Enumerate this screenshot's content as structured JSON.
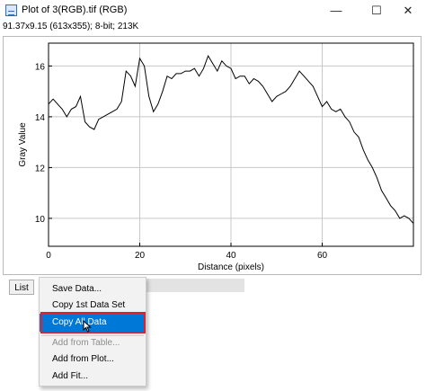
{
  "window": {
    "title": "Plot of 3(RGB).tif (RGB)",
    "info": "91.37x9.15  (613x355); 8-bit; 213K",
    "controls": {
      "minimize": "—",
      "maximize": "☐",
      "close": "✕"
    }
  },
  "chart_data": {
    "type": "line",
    "xlabel": "Distance (pixels)",
    "ylabel": "Gray Value",
    "xlim": [
      0,
      80
    ],
    "ylim": [
      8.9,
      16.9
    ],
    "xticks": [
      0,
      20,
      40,
      60
    ],
    "yticks": [
      10,
      12,
      14,
      16
    ],
    "x_tick_labels": [
      "0",
      "20",
      "40",
      "60"
    ],
    "y_tick_labels": [
      "10",
      "12",
      "14",
      "16"
    ],
    "grid": true,
    "series": [
      {
        "x": [
          0,
          1,
          2,
          3,
          4,
          5,
          6,
          7,
          8,
          9,
          10,
          11,
          12,
          13,
          14,
          15,
          16,
          17,
          18,
          19,
          20,
          21,
          22,
          23,
          24,
          25,
          26,
          27,
          28,
          29,
          30,
          31,
          32,
          33,
          34,
          35,
          36,
          37,
          38,
          39,
          40,
          41,
          42,
          43,
          44,
          45,
          46,
          47,
          48,
          49,
          50,
          51,
          52,
          53,
          54,
          55,
          56,
          57,
          58,
          59,
          60,
          61,
          62,
          63,
          64,
          65,
          66,
          67,
          68,
          69,
          70,
          71,
          72,
          73,
          74,
          75,
          76,
          77,
          78,
          79,
          80
        ],
        "y": [
          14.5,
          14.7,
          14.5,
          14.3,
          14.0,
          14.3,
          14.4,
          14.8,
          13.8,
          13.6,
          13.5,
          13.9,
          14.0,
          14.1,
          14.2,
          14.3,
          14.6,
          15.8,
          15.6,
          15.2,
          16.3,
          16.0,
          14.8,
          14.2,
          14.5,
          15.0,
          15.6,
          15.5,
          15.7,
          15.7,
          15.8,
          15.8,
          15.9,
          15.6,
          15.9,
          16.4,
          16.1,
          15.8,
          16.2,
          16.0,
          15.9,
          15.5,
          15.6,
          15.6,
          15.3,
          15.5,
          15.4,
          15.2,
          14.9,
          14.6,
          14.8,
          14.9,
          15.0,
          15.2,
          15.5,
          15.8,
          15.6,
          15.4,
          15.2,
          14.8,
          14.4,
          14.6,
          14.3,
          14.2,
          14.3,
          14.0,
          13.8,
          13.4,
          13.2,
          12.7,
          12.3,
          12.0,
          11.6,
          11.1,
          10.8,
          10.5,
          10.3,
          10.0,
          10.1,
          10.0,
          9.8
        ]
      }
    ]
  },
  "list_button": "List",
  "context_menu": {
    "items": [
      {
        "label": "Save Data...",
        "enabled": true
      },
      {
        "label": "Copy 1st Data Set",
        "enabled": true
      },
      {
        "label": "Copy All Data",
        "enabled": true,
        "selected": true
      },
      {
        "label": "Add from Table...",
        "enabled": false
      },
      {
        "label": "Add from Plot...",
        "enabled": true
      },
      {
        "label": "Add Fit...",
        "enabled": true
      }
    ]
  },
  "colors": {
    "selection": "#0078d7",
    "highlight_box": "#e0202a",
    "plot_line": "#000000",
    "grid": "#c8c8c8"
  }
}
